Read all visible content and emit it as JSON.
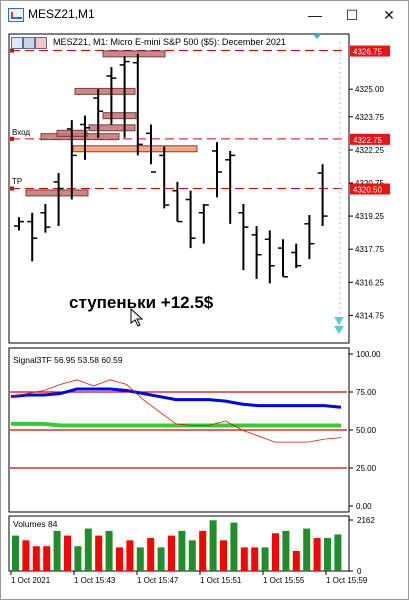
{
  "window": {
    "title": "MESZ21,M1",
    "minimize": "—",
    "maximize": "☐",
    "close": "✕"
  },
  "header": {
    "info": "MESZ21, M1:  Micro E-mini S&P 500 ($5): December 2021"
  },
  "price_panel": {
    "levels": [
      "4326.75",
      "4325.00",
      "4323.75",
      "4322.75",
      "4322.25",
      "4320.75",
      "4320.50",
      "4319.25",
      "4317.75",
      "4316.25",
      "4314.75"
    ],
    "line_labels": {
      "entry": "Вход",
      "tp": "TP"
    },
    "annotation": "ступеньки +12.5$",
    "highlight_colors": {
      "top": "#ff0000",
      "entry": "#ff0000",
      "tp": "#ff0000"
    }
  },
  "indicator_panel": {
    "label": "Signal3TF 56.95 53.58 60.59",
    "levels": [
      "100.00",
      "75.00",
      "50.00",
      "25.00",
      "0.00"
    ]
  },
  "volume_panel": {
    "label": "Volumes 84",
    "levels": [
      "2162",
      "0"
    ]
  },
  "x_axis": {
    "ticks": [
      "1 Oct 2021",
      "1 Oct 15:43",
      "1 Oct 15:47",
      "1 Oct 15:51",
      "1 Oct 15:55",
      "1 Oct 15:59"
    ]
  },
  "colors": {
    "volume_up": "#1f8f2a",
    "volume_down": "#ff0000",
    "signal_fast": "#0000ff",
    "signal_slow": "#33cc33",
    "signal_raw": "#cc2200",
    "level_line": "#dd0000"
  },
  "chart_data": [
    {
      "type": "bar",
      "title": "MESZ21, M1:  Micro E-mini S&P 500 ($5): December 2021",
      "ylabel": "",
      "ylim": [
        4313.5,
        4327.5
      ],
      "series": [
        {
          "name": "",
          "values": [
            4319.0,
            4318.25,
            4318.75,
            4320.5,
            4322.0,
            4323.25,
            4324.0,
            4325.5,
            4326.25,
            4322.5,
            4321.25,
            4319.75,
            4319.0,
            4318.25,
            4319.75,
            4321.25,
            4322.0,
            4318.75,
            4317.5,
            4317.0,
            4316.5,
            4317.0,
            4318.0,
            4319.25
          ]
        }
      ]
    },
    {
      "type": "line",
      "title": "Signal3TF 56.95 53.58 60.59",
      "ylim": [
        0,
        100
      ],
      "series": [
        {
          "name": "",
          "values": [
            72,
            73,
            73,
            74,
            77,
            77,
            77,
            76,
            74,
            72,
            70,
            70,
            70,
            69,
            67,
            66,
            66,
            66,
            66,
            66,
            65
          ]
        },
        {
          "name": "",
          "values": [
            54,
            54,
            54,
            53,
            53,
            53,
            53,
            53,
            53,
            53,
            53,
            53,
            53,
            53,
            53,
            53,
            53,
            53,
            53,
            53,
            53
          ]
        },
        {
          "name": "",
          "values": [
            72,
            74,
            76,
            80,
            83,
            79,
            83,
            80,
            70,
            62,
            54,
            53,
            53,
            56,
            50,
            46,
            42,
            42,
            42,
            44,
            45
          ]
        }
      ]
    },
    {
      "type": "bar",
      "title": "Volumes 84",
      "ylim": [
        0,
        2162
      ],
      "series": [
        {
          "name": "",
          "values": [
            1500,
            1300,
            1050,
            1050,
            1700,
            1500,
            1050,
            1800,
            1500,
            1700,
            1000,
            1300,
            1000,
            1400,
            1000,
            1500,
            1700,
            1300,
            1700,
            2150,
            1300,
            2050,
            1000,
            1000,
            1000,
            1600,
            1700,
            850,
            1800,
            1400,
            1400,
            1550
          ]
        }
      ]
    }
  ]
}
